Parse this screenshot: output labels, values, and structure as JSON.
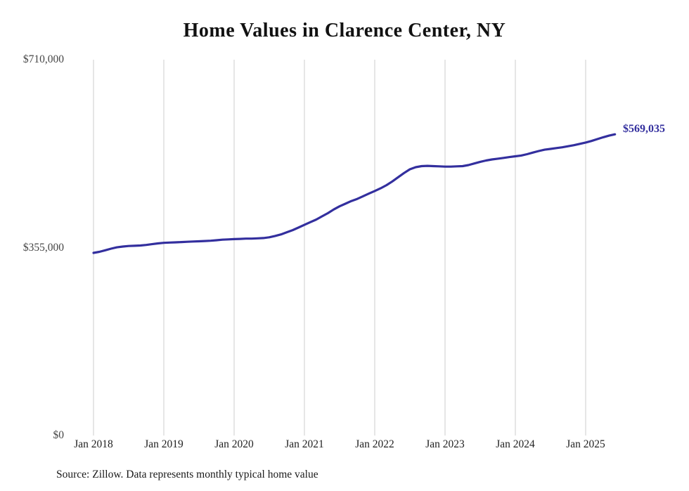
{
  "chart_data": {
    "type": "line",
    "title": "Home Values in Clarence Center, NY",
    "xlabel": "",
    "ylabel": "",
    "ylim": [
      0,
      710000
    ],
    "grid": "vertical-only",
    "legend": "none",
    "line_color": "#332f9e",
    "grid_color": "#cccccc",
    "end_label": "$569,035",
    "end_value": 569035,
    "y_tick_labels": {
      "top": "$710,000",
      "mid": "$355,000",
      "zero": "$0"
    },
    "y_tick_values": [
      0,
      355000,
      710000
    ],
    "x_tick_labels": [
      "Jan 2018",
      "Jan 2019",
      "Jan 2020",
      "Jan 2021",
      "Jan 2022",
      "Jan 2023",
      "Jan 2024",
      "Jan 2025"
    ],
    "x": [
      "2018-01",
      "2018-02",
      "2018-03",
      "2018-04",
      "2018-05",
      "2018-06",
      "2018-07",
      "2018-08",
      "2018-09",
      "2018-10",
      "2018-11",
      "2018-12",
      "2019-01",
      "2019-02",
      "2019-03",
      "2019-04",
      "2019-05",
      "2019-06",
      "2019-07",
      "2019-08",
      "2019-09",
      "2019-10",
      "2019-11",
      "2019-12",
      "2020-01",
      "2020-02",
      "2020-03",
      "2020-04",
      "2020-05",
      "2020-06",
      "2020-07",
      "2020-08",
      "2020-09",
      "2020-10",
      "2020-11",
      "2020-12",
      "2021-01",
      "2021-02",
      "2021-03",
      "2021-04",
      "2021-05",
      "2021-06",
      "2021-07",
      "2021-08",
      "2021-09",
      "2021-10",
      "2021-11",
      "2021-12",
      "2022-01",
      "2022-02",
      "2022-03",
      "2022-04",
      "2022-05",
      "2022-06",
      "2022-07",
      "2022-08",
      "2022-09",
      "2022-10",
      "2022-11",
      "2022-12",
      "2023-01",
      "2023-02",
      "2023-03",
      "2023-04",
      "2023-05",
      "2023-06",
      "2023-07",
      "2023-08",
      "2023-09",
      "2023-10",
      "2023-11",
      "2023-12",
      "2024-01",
      "2024-02",
      "2024-03",
      "2024-04",
      "2024-05",
      "2024-06",
      "2024-07",
      "2024-08",
      "2024-09",
      "2024-10",
      "2024-11",
      "2024-12",
      "2025-01",
      "2025-02",
      "2025-03",
      "2025-04",
      "2025-05",
      "2025-06"
    ],
    "values": [
      345000,
      347000,
      350000,
      353000,
      355500,
      357000,
      358000,
      358500,
      359000,
      360000,
      361500,
      363000,
      364000,
      364500,
      365000,
      365500,
      366000,
      366500,
      367000,
      367500,
      368000,
      369000,
      370000,
      370500,
      371000,
      371500,
      372000,
      372000,
      372500,
      373000,
      374500,
      377000,
      380000,
      384000,
      388000,
      393000,
      398000,
      403000,
      408000,
      414000,
      420000,
      427000,
      433000,
      438000,
      443000,
      447000,
      452000,
      457000,
      462000,
      467000,
      473000,
      480000,
      488000,
      496000,
      503000,
      507000,
      509000,
      509500,
      509000,
      508500,
      508000,
      508000,
      508500,
      509000,
      511000,
      514000,
      517000,
      519500,
      521500,
      523000,
      524500,
      526000,
      527500,
      529000,
      531500,
      534500,
      537500,
      540000,
      541500,
      543000,
      544500,
      546500,
      548500,
      551000,
      553500,
      556500,
      560000,
      563500,
      566500,
      569035
    ],
    "source_note": "Source: Zillow. Data represents monthly typical home value"
  }
}
